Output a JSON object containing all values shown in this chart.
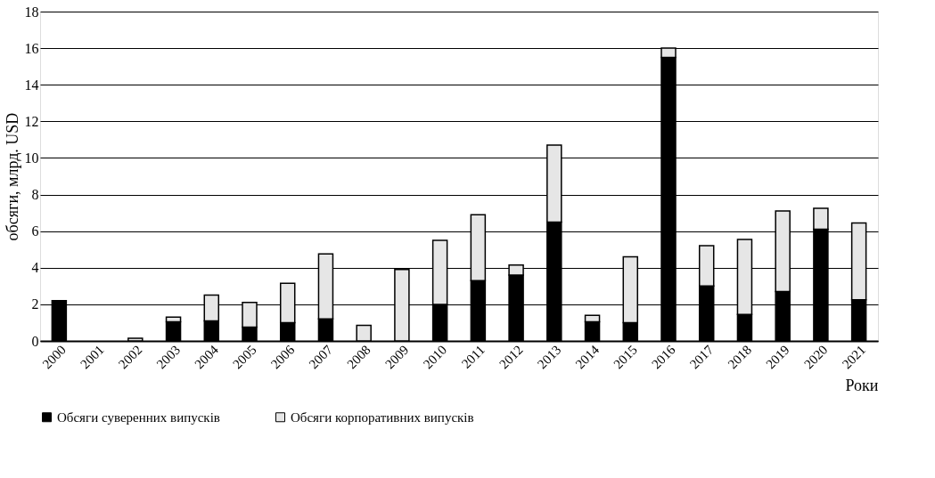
{
  "chart_data": {
    "type": "bar",
    "stacked": true,
    "ylabel": "обсяги, млрд. USD",
    "xlabel": "Роки",
    "categories": [
      "2000",
      "2001",
      "2002",
      "2003",
      "2004",
      "2005",
      "2006",
      "2007",
      "2008",
      "2009",
      "2010",
      "2011",
      "2012",
      "2013",
      "2014",
      "2015",
      "2016",
      "2017",
      "2018",
      "2019",
      "2020",
      "2021"
    ],
    "series": [
      {
        "name": "Обсяги суверенних випусків",
        "color": "#000000",
        "values": [
          2.2,
          null,
          null,
          1.05,
          1.1,
          0.75,
          1.0,
          1.2,
          null,
          null,
          2.0,
          3.3,
          3.6,
          6.5,
          1.05,
          1.0,
          15.5,
          3.0,
          1.45,
          2.7,
          6.1,
          2.25
        ]
      },
      {
        "name": "Обсяги корпоративних випусків",
        "color": "#e6e6e6",
        "values": [
          null,
          null,
          0.15,
          0.25,
          1.4,
          1.35,
          2.15,
          3.55,
          0.85,
          3.9,
          3.5,
          3.6,
          0.55,
          4.2,
          0.35,
          3.6,
          0.5,
          2.2,
          4.1,
          4.4,
          1.15,
          4.2
        ]
      }
    ],
    "ylim": [
      0,
      18
    ],
    "yticks": [
      0,
      2,
      4,
      6,
      8,
      10,
      12,
      14,
      16,
      18
    ],
    "grid": "y",
    "legend": "bottom"
  }
}
